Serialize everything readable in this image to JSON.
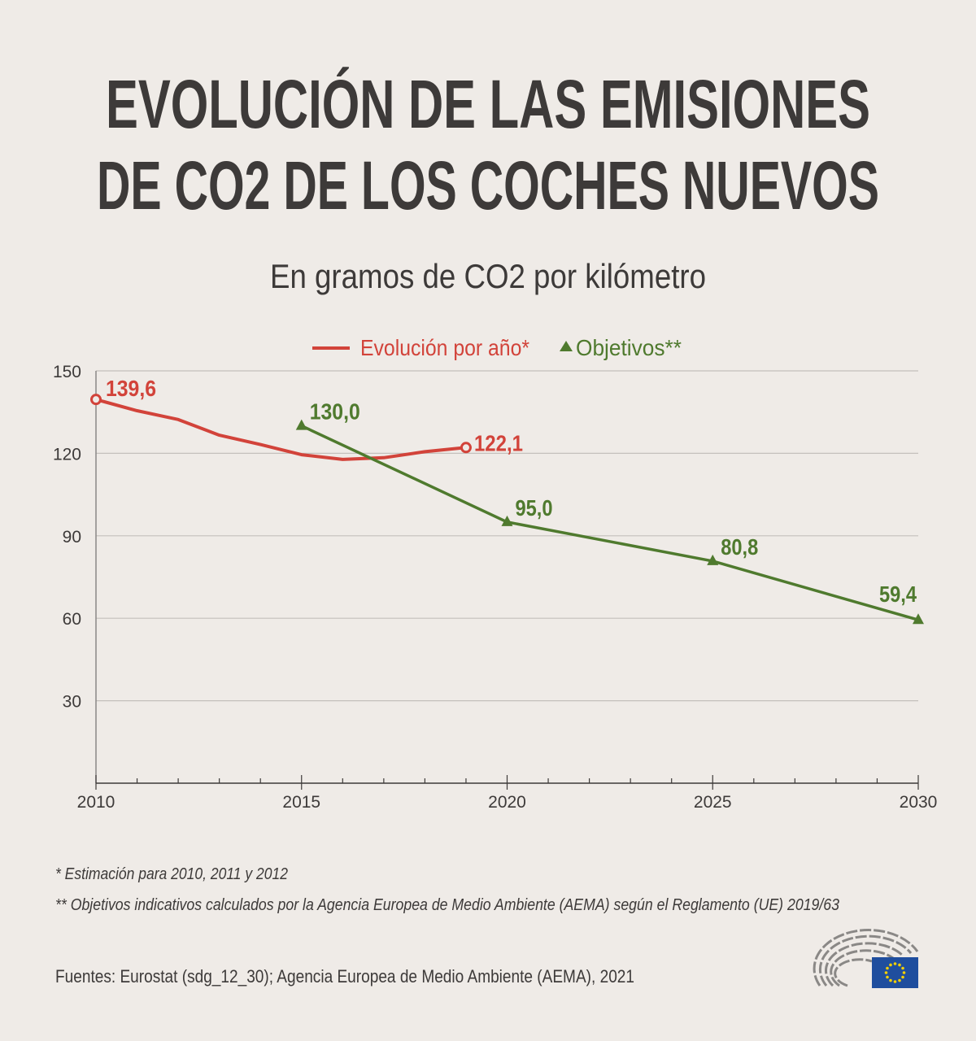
{
  "title_lines": [
    "EVOLUCIÓN DE LAS EMISIONES",
    "DE CO2 DE LOS COCHES NUEVOS"
  ],
  "subtitle": "En gramos de CO2 por kilómetro",
  "colors": {
    "background": "#efebe7",
    "title": "#3d3a39",
    "actual": "#d2433a",
    "target": "#4f7a2e",
    "grid": "#c4c0bc"
  },
  "chart_data": {
    "type": "line",
    "xlim": [
      2010,
      2030
    ],
    "ylim": [
      0,
      150
    ],
    "x_ticks": [
      2010,
      2015,
      2020,
      2025,
      2030
    ],
    "y_ticks": [
      30,
      60,
      90,
      120,
      150
    ],
    "grid": "horizontal",
    "legend_placement": "top-center",
    "series": [
      {
        "name": "Evolución por año*",
        "marker": "open-circle-endpoints",
        "x": [
          2010,
          2011,
          2012,
          2013,
          2014,
          2015,
          2016,
          2017,
          2018,
          2019
        ],
        "y": [
          139.6,
          135.5,
          132.3,
          126.6,
          123.2,
          119.5,
          117.8,
          118.4,
          120.6,
          122.1
        ],
        "labels": [
          {
            "x": 2010,
            "text": "139,6"
          },
          {
            "x": 2019,
            "text": "122,1"
          }
        ]
      },
      {
        "name": "Objetivos**",
        "marker": "triangle",
        "x": [
          2015,
          2020,
          2025,
          2030
        ],
        "y": [
          130.0,
          95.0,
          80.8,
          59.4
        ],
        "labels": [
          {
            "x": 2015,
            "text": "130,0"
          },
          {
            "x": 2020,
            "text": "95,0"
          },
          {
            "x": 2025,
            "text": "80,8"
          },
          {
            "x": 2030,
            "text": "59,4"
          }
        ]
      }
    ]
  },
  "footnotes": [
    "* Estimación para 2010, 2011 y 2012",
    "** Objetivos indicativos calculados por la Agencia Europea de Medio Ambiente (AEMA) según el Reglamento (UE) 2019/63"
  ],
  "source": "Fuentes: Eurostat (sdg_12_30); Agencia Europea de Medio Ambiente (AEMA), 2021",
  "logo": "European Parliament hemicycle logo with EU flag"
}
